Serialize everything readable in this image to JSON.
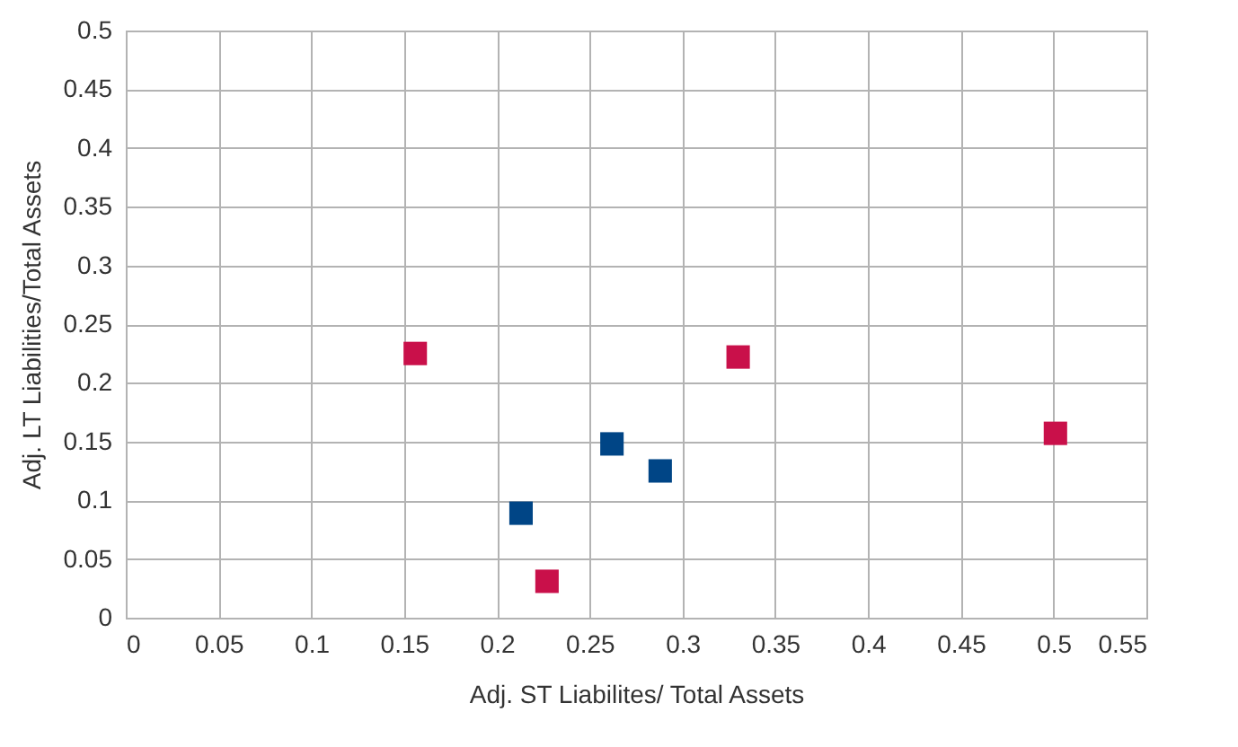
{
  "chart_data": {
    "type": "scatter",
    "xlabel": "Adj. ST Liabilites/ Total Assets",
    "ylabel": "Adj. LT Liabilities/Total Assets",
    "series": [
      {
        "color": "#c9104a",
        "x": [
          0.156,
          0.227,
          0.33,
          0.501
        ],
        "values": [
          0.225,
          0.031,
          0.222,
          0.157
        ]
      },
      {
        "color": "#004586",
        "x": [
          0.213,
          0.262,
          0.288
        ],
        "values": [
          0.089,
          0.148,
          0.125
        ]
      }
    ],
    "xlim": [
      0,
      0.55
    ],
    "xticks": [
      0,
      0.05,
      0.1,
      0.15,
      0.2,
      0.25,
      0.3,
      0.35,
      0.4,
      0.45,
      0.5,
      0.55
    ],
    "ylim": [
      0,
      0.5
    ],
    "yticks": [
      0,
      0.05,
      0.1,
      0.15,
      0.2,
      0.25,
      0.3,
      0.35,
      0.4,
      0.45,
      0.5
    ],
    "grid": true,
    "marker": "square"
  }
}
